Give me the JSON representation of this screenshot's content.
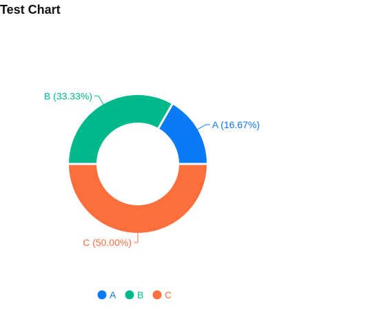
{
  "chart_data": {
    "type": "pie",
    "title": "Test Chart",
    "donut": true,
    "categories": [
      "A",
      "B",
      "C"
    ],
    "values": [
      16.67,
      33.33,
      50.0
    ],
    "labels": [
      "A (16.67%)",
      "B (33.33%)",
      "C (50.00%)"
    ],
    "colors": [
      "#0a7bf5",
      "#00b98b",
      "#fa6f3c"
    ],
    "legend_position": "bottom"
  }
}
